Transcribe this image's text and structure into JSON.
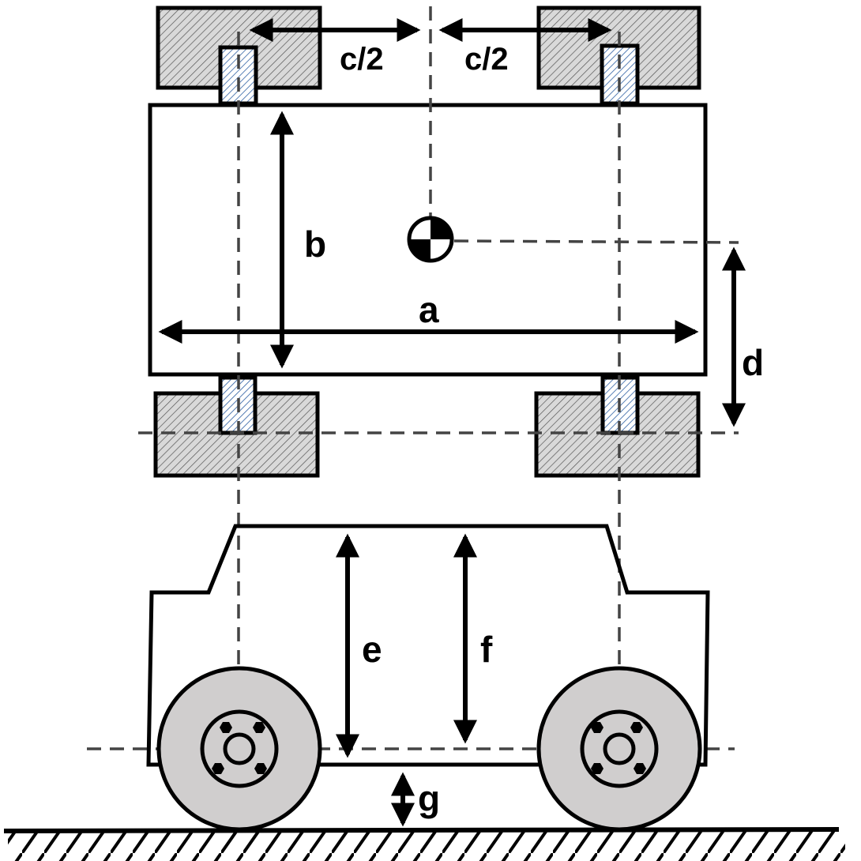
{
  "labels": {
    "a": "a",
    "b": "b",
    "c_left": "c/2",
    "c_right": "c/2",
    "d": "d",
    "e": "e",
    "f": "f",
    "g": "g"
  },
  "colors": {
    "stroke": "#000000",
    "guide": "#444444",
    "tire_hatch_bg": "#d9d9d9",
    "hub_hatch": "#2e5fa3",
    "wheel_fill": "#d0cece",
    "background": "#ffffff"
  },
  "icons": {
    "center_of_gravity": "center-of-gravity-icon",
    "ground": "ground-hatch-icon"
  }
}
